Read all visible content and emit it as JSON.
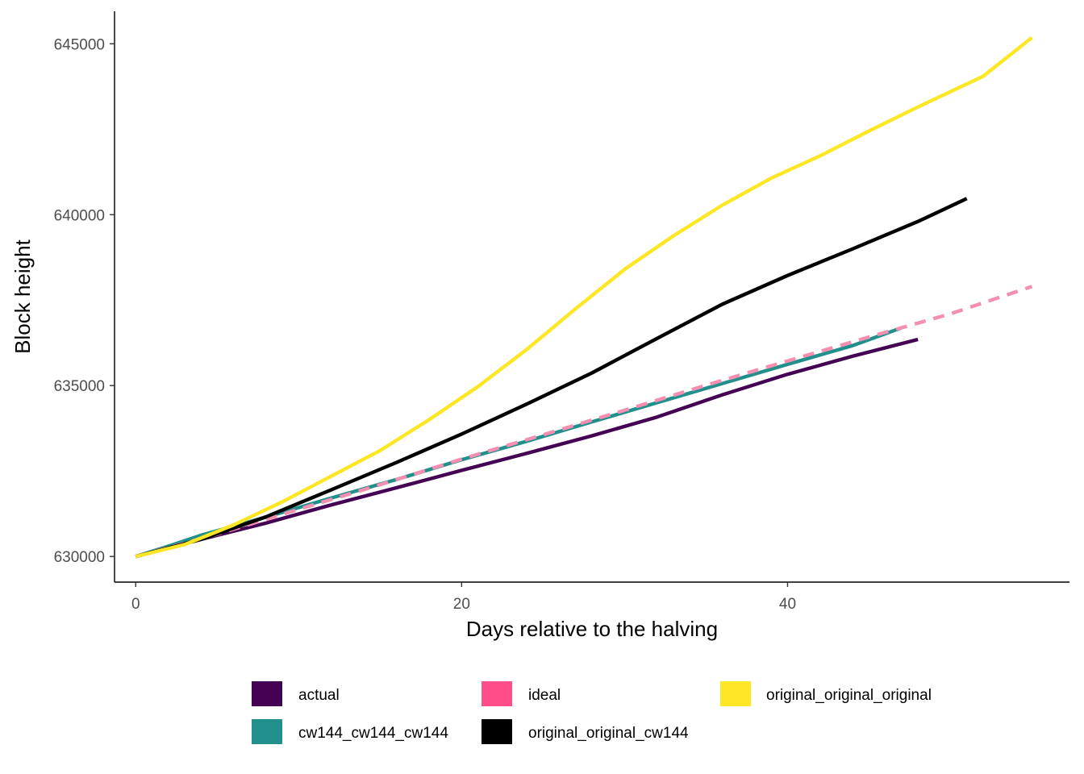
{
  "chart_data": {
    "type": "line",
    "title": "",
    "xlabel": "Days relative to the halving",
    "ylabel": "Block height",
    "xlim": [
      -1.3,
      57.3
    ],
    "ylim": [
      629250,
      645950
    ],
    "x_ticks": [
      0,
      20,
      40
    ],
    "x_tick_labels": [
      "0",
      "20",
      "40"
    ],
    "y_ticks": [
      630000,
      635000,
      640000,
      645000
    ],
    "y_tick_labels": [
      "630000",
      "635000",
      "640000",
      "645000"
    ],
    "grid": false,
    "legend_position": "bottom",
    "series": [
      {
        "name": "actual",
        "color": "#440154",
        "dash": false,
        "points": [
          [
            0,
            630000
          ],
          [
            4,
            630500
          ],
          [
            8,
            630980
          ],
          [
            12,
            631510
          ],
          [
            16,
            632010
          ],
          [
            20,
            632520
          ],
          [
            24,
            633020
          ],
          [
            28,
            633530
          ],
          [
            32,
            634080
          ],
          [
            36,
            634730
          ],
          [
            40,
            635330
          ],
          [
            44,
            635860
          ],
          [
            48,
            636350
          ]
        ]
      },
      {
        "name": "cw144_cw144_cw144",
        "color": "#21908C",
        "dash": false,
        "points": [
          [
            0,
            630000
          ],
          [
            2,
            630300
          ],
          [
            4,
            630620
          ],
          [
            8,
            631150
          ],
          [
            12,
            631710
          ],
          [
            16,
            632250
          ],
          [
            20,
            632830
          ],
          [
            24,
            633370
          ],
          [
            28,
            633940
          ],
          [
            32,
            634500
          ],
          [
            36,
            635060
          ],
          [
            40,
            635620
          ],
          [
            44,
            636170
          ],
          [
            47,
            636690
          ]
        ]
      },
      {
        "name": "ideal",
        "color": "#F48FB1",
        "dash": true,
        "points": [
          [
            0,
            630000
          ],
          [
            5,
            630650
          ],
          [
            10,
            631380
          ],
          [
            15,
            632100
          ],
          [
            20,
            632850
          ],
          [
            25,
            633560
          ],
          [
            30,
            634280
          ],
          [
            35,
            635010
          ],
          [
            40,
            635720
          ],
          [
            45,
            636420
          ],
          [
            50,
            637100
          ],
          [
            55,
            637900
          ]
        ]
      },
      {
        "name": "original_original_cw144",
        "color": "#000000",
        "dash": false,
        "points": [
          [
            0,
            630000
          ],
          [
            4,
            630500
          ],
          [
            8,
            631160
          ],
          [
            12,
            631950
          ],
          [
            16,
            632750
          ],
          [
            20,
            633580
          ],
          [
            24,
            634460
          ],
          [
            28,
            635370
          ],
          [
            32,
            636380
          ],
          [
            36,
            637380
          ],
          [
            40,
            638220
          ],
          [
            44,
            639000
          ],
          [
            48,
            639800
          ],
          [
            51,
            640470
          ]
        ]
      },
      {
        "name": "original_original_original",
        "color": "#FDE725",
        "dash": false,
        "points": [
          [
            0,
            630000
          ],
          [
            3,
            630350
          ],
          [
            6,
            630920
          ],
          [
            9,
            631600
          ],
          [
            12,
            632350
          ],
          [
            15,
            633100
          ],
          [
            18,
            634000
          ],
          [
            21,
            634970
          ],
          [
            24,
            636060
          ],
          [
            27,
            637250
          ],
          [
            30,
            638400
          ],
          [
            33,
            639380
          ],
          [
            36,
            640280
          ],
          [
            39,
            641070
          ],
          [
            42,
            641720
          ],
          [
            45,
            642450
          ],
          [
            48,
            643150
          ],
          [
            52,
            644050
          ],
          [
            55,
            645180
          ]
        ]
      }
    ]
  },
  "legend": {
    "items": [
      {
        "label": "actual",
        "color": "#440154"
      },
      {
        "label": "ideal",
        "color": "#FF4D8A"
      },
      {
        "label": "original_original_original",
        "color": "#FDE725"
      },
      {
        "label": "cw144_cw144_cw144",
        "color": "#21908C"
      },
      {
        "label": "original_original_cw144",
        "color": "#000000"
      }
    ]
  }
}
